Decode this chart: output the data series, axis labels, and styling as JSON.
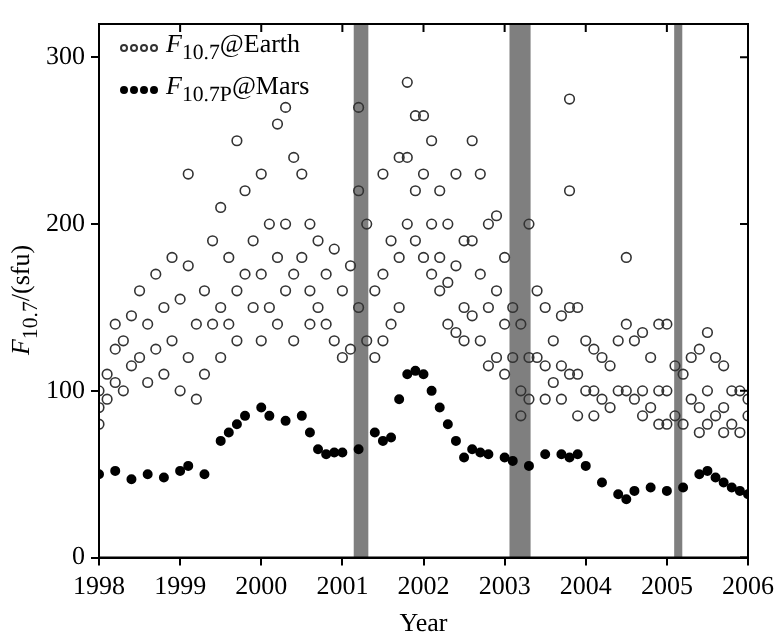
{
  "chart_data": {
    "type": "scatter",
    "xlabel": "Year",
    "ylabel": "F$_{10.7}$/(sfu)",
    "legend": "top left",
    "marker": "circle",
    "grid": false,
    "xlim": [
      1998,
      2006
    ],
    "xticks": [
      1998,
      1999,
      2000,
      2001,
      2002,
      2003,
      2004,
      2005,
      2006
    ],
    "ylim": [
      0,
      320
    ],
    "yticks": [
      0,
      100,
      200,
      300
    ],
    "bands": [
      {
        "axis": "x",
        "from": 2001.14,
        "to": 2001.32,
        "color": "#7f7f7f"
      },
      {
        "axis": "x",
        "from": 2003.06,
        "to": 2003.32,
        "color": "#7f7f7f"
      },
      {
        "axis": "x",
        "from": 2005.09,
        "to": 2005.19,
        "color": "#7f7f7f"
      }
    ],
    "series": [
      {
        "name": "F$_{10.7}$@Earth",
        "color": "#333333",
        "x": [
          1998.0,
          1998.0,
          1998.0,
          1998.1,
          1998.1,
          1998.2,
          1998.2,
          1998.2,
          1998.3,
          1998.3,
          1998.4,
          1998.4,
          1998.5,
          1998.5,
          1998.6,
          1998.6,
          1998.7,
          1998.7,
          1998.8,
          1998.8,
          1998.9,
          1998.9,
          1999.0,
          1999.0,
          1999.1,
          1999.1,
          1999.1,
          1999.2,
          1999.2,
          1999.3,
          1999.3,
          1999.4,
          1999.4,
          1999.5,
          1999.5,
          1999.5,
          1999.6,
          1999.6,
          1999.7,
          1999.7,
          1999.7,
          1999.8,
          1999.8,
          1999.9,
          1999.9,
          2000.0,
          2000.0,
          2000.0,
          2000.1,
          2000.1,
          2000.2,
          2000.2,
          2000.2,
          2000.3,
          2000.3,
          2000.3,
          2000.4,
          2000.4,
          2000.4,
          2000.5,
          2000.5,
          2000.6,
          2000.6,
          2000.6,
          2000.7,
          2000.7,
          2000.8,
          2000.8,
          2000.9,
          2000.9,
          2001.0,
          2001.0,
          2001.1,
          2001.1,
          2001.2,
          2001.2,
          2001.2,
          2001.3,
          2001.3,
          2001.4,
          2001.4,
          2001.5,
          2001.5,
          2001.5,
          2001.6,
          2001.6,
          2001.7,
          2001.7,
          2001.7,
          2001.8,
          2001.8,
          2001.8,
          2001.9,
          2001.9,
          2001.9,
          2002.0,
          2002.0,
          2002.0,
          2002.1,
          2002.1,
          2002.1,
          2002.2,
          2002.2,
          2002.2,
          2002.3,
          2002.3,
          2002.3,
          2002.4,
          2002.4,
          2002.4,
          2002.5,
          2002.5,
          2002.5,
          2002.6,
          2002.6,
          2002.6,
          2002.7,
          2002.7,
          2002.7,
          2002.8,
          2002.8,
          2002.8,
          2002.9,
          2002.9,
          2002.9,
          2003.0,
          2003.0,
          2003.0,
          2003.1,
          2003.1,
          2003.2,
          2003.2,
          2003.2,
          2003.3,
          2003.3,
          2003.3,
          2003.4,
          2003.4,
          2003.5,
          2003.5,
          2003.5,
          2003.6,
          2003.6,
          2003.7,
          2003.7,
          2003.7,
          2003.8,
          2003.8,
          2003.8,
          2003.8,
          2003.9,
          2003.9,
          2003.9,
          2004.0,
          2004.0,
          2004.1,
          2004.1,
          2004.1,
          2004.2,
          2004.2,
          2004.3,
          2004.3,
          2004.4,
          2004.4,
          2004.5,
          2004.5,
          2004.5,
          2004.6,
          2004.6,
          2004.7,
          2004.7,
          2004.7,
          2004.8,
          2004.8,
          2004.9,
          2004.9,
          2004.9,
          2005.0,
          2005.0,
          2005.0,
          2005.1,
          2005.1,
          2005.2,
          2005.2,
          2005.3,
          2005.3,
          2005.4,
          2005.4,
          2005.4,
          2005.5,
          2005.5,
          2005.5,
          2005.6,
          2005.6,
          2005.7,
          2005.7,
          2005.7,
          2005.8,
          2005.8,
          2005.9,
          2005.9,
          2006.0,
          2006.0
        ],
        "values": [
          90,
          80,
          100,
          110,
          95,
          125,
          105,
          140,
          130,
          100,
          145,
          115,
          120,
          160,
          140,
          105,
          170,
          125,
          150,
          110,
          180,
          130,
          155,
          100,
          230,
          120,
          175,
          140,
          95,
          160,
          110,
          190,
          140,
          210,
          150,
          120,
          180,
          140,
          250,
          160,
          130,
          220,
          170,
          190,
          150,
          230,
          170,
          130,
          200,
          150,
          260,
          180,
          140,
          270,
          200,
          160,
          240,
          170,
          130,
          230,
          180,
          200,
          160,
          140,
          190,
          150,
          170,
          140,
          185,
          130,
          160,
          120,
          175,
          125,
          270,
          150,
          220,
          200,
          130,
          160,
          120,
          230,
          170,
          130,
          190,
          140,
          240,
          180,
          150,
          285,
          240,
          200,
          265,
          220,
          190,
          265,
          230,
          180,
          250,
          200,
          170,
          220,
          180,
          160,
          200,
          165,
          140,
          230,
          175,
          135,
          190,
          150,
          130,
          250,
          190,
          145,
          230,
          170,
          130,
          200,
          150,
          115,
          205,
          160,
          120,
          180,
          140,
          110,
          150,
          120,
          140,
          100,
          85,
          200,
          120,
          95,
          160,
          120,
          150,
          115,
          95,
          130,
          105,
          145,
          115,
          95,
          275,
          220,
          150,
          110,
          150,
          110,
          85,
          130,
          100,
          125,
          100,
          85,
          120,
          95,
          115,
          90,
          130,
          100,
          180,
          140,
          100,
          130,
          95,
          135,
          100,
          85,
          120,
          90,
          140,
          100,
          80,
          140,
          100,
          80,
          115,
          85,
          110,
          80,
          120,
          95,
          125,
          90,
          75,
          135,
          100,
          80,
          120,
          85,
          115,
          90,
          75,
          100,
          80,
          100,
          75,
          95,
          85
        ]
      },
      {
        "name": "F$_{10.7P}$@Mars",
        "color": "#000000",
        "x": [
          1998.0,
          1998.2,
          1998.4,
          1998.6,
          1998.8,
          1999.0,
          1999.1,
          1999.3,
          1999.5,
          1999.6,
          1999.7,
          1999.8,
          2000.0,
          2000.1,
          2000.3,
          2000.5,
          2000.6,
          2000.7,
          2000.8,
          2000.9,
          2001.0,
          2001.2,
          2001.4,
          2001.5,
          2001.6,
          2001.7,
          2001.8,
          2001.9,
          2002.0,
          2002.1,
          2002.2,
          2002.3,
          2002.4,
          2002.5,
          2002.6,
          2002.7,
          2002.8,
          2003.0,
          2003.1,
          2003.3,
          2003.5,
          2003.7,
          2003.8,
          2003.9,
          2004.0,
          2004.2,
          2004.4,
          2004.5,
          2004.6,
          2004.8,
          2005.0,
          2005.2,
          2005.4,
          2005.5,
          2005.6,
          2005.7,
          2005.8,
          2005.9,
          2006.0
        ],
        "values": [
          50,
          52,
          47,
          50,
          48,
          52,
          55,
          50,
          70,
          75,
          80,
          85,
          90,
          85,
          82,
          85,
          75,
          65,
          62,
          63,
          63,
          65,
          75,
          70,
          72,
          95,
          110,
          112,
          110,
          100,
          90,
          80,
          70,
          60,
          65,
          63,
          62,
          60,
          58,
          55,
          62,
          62,
          60,
          62,
          55,
          45,
          38,
          35,
          40,
          42,
          40,
          42,
          50,
          52,
          48,
          45,
          42,
          40,
          38
        ]
      }
    ]
  }
}
